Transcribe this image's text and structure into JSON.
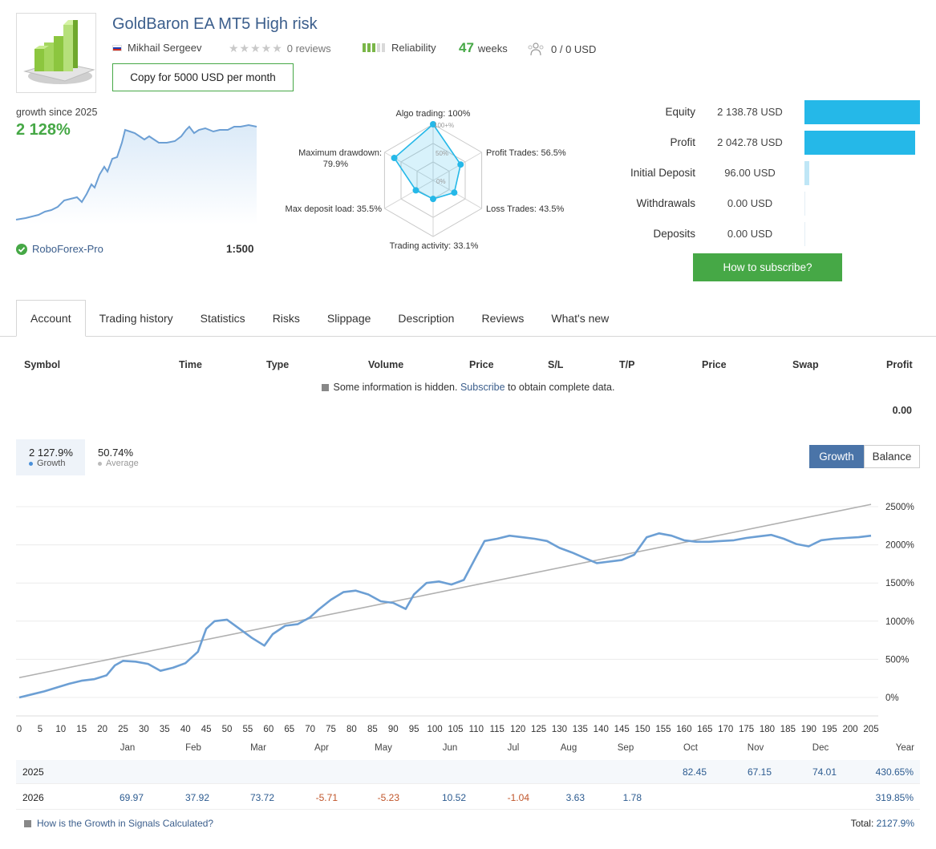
{
  "header": {
    "title": "GoldBaron EA MT5 High risk",
    "author": "Mikhail Sergeev",
    "reviews": "0 reviews",
    "reliability_label": "Reliability",
    "reliability_level": 0.6,
    "weeks_num": "47",
    "weeks_label": "weeks",
    "subscribers": "0 / 0 USD",
    "copy_button": "Copy for 5000 USD per month"
  },
  "growth_summary": {
    "label": "growth since 2025",
    "value": "2 128%",
    "broker": "RoboForex-Pro",
    "leverage": "1:500"
  },
  "radar": {
    "algo": "Algo trading: 100%",
    "profit_trades": "Profit Trades: 56.5%",
    "loss_trades": "Loss Trades: 43.5%",
    "activity": "Trading activity: 33.1%",
    "deposit_load": "Max deposit load: 35.5%",
    "drawdown_1": "Maximum drawdown:",
    "drawdown_2": "79.9%",
    "ring_100": "100+%",
    "ring_50": "50%",
    "ring_0": "0%",
    "values": [
      1.0,
      0.565,
      0.435,
      0.331,
      0.355,
      0.799
    ]
  },
  "stats": [
    {
      "label": "Equity",
      "value": "2 138.78 USD",
      "level": 1.0
    },
    {
      "label": "Profit",
      "value": "2 042.78 USD",
      "level": 0.955
    },
    {
      "label": "Initial Deposit",
      "value": "96.00 USD",
      "level": 0.045
    },
    {
      "label": "Withdrawals",
      "value": "0.00 USD",
      "level": 0.0
    },
    {
      "label": "Deposits",
      "value": "0.00 USD",
      "level": 0.0
    }
  ],
  "subscribe_button": "How to subscribe?",
  "tabs": [
    "Account",
    "Trading history",
    "Statistics",
    "Risks",
    "Slippage",
    "Description",
    "Reviews",
    "What's new"
  ],
  "table": {
    "headers": [
      "Symbol",
      "Time",
      "Type",
      "Volume",
      "Price",
      "S/L",
      "T/P",
      "Price",
      "Swap",
      "Profit"
    ],
    "note_before": "Some information is hidden.",
    "note_link": "Subscribe",
    "note_after": "to obtain complete data.",
    "total_profit": "0.00"
  },
  "chart_summary": {
    "growth_value": "2 127.9%",
    "growth_label": "Growth",
    "average_value": "50.74%",
    "average_label": "Average",
    "btn_growth": "Growth",
    "btn_balance": "Balance"
  },
  "chart_data": {
    "type": "line",
    "x_ticks": [
      0,
      5,
      10,
      15,
      20,
      25,
      30,
      35,
      40,
      45,
      50,
      55,
      60,
      65,
      70,
      75,
      80,
      85,
      90,
      95,
      100,
      105,
      110,
      115,
      120,
      125,
      130,
      135,
      140,
      145,
      150,
      155,
      160,
      165,
      170,
      175,
      180,
      185,
      190,
      195,
      200,
      205
    ],
    "y_ticks": [
      "0%",
      "500%",
      "1000%",
      "1500%",
      "2000%",
      "2500%"
    ],
    "xlim": [
      0,
      205
    ],
    "ylim": [
      -50,
      2650
    ],
    "series": [
      {
        "values": [
          [
            0,
            0
          ],
          [
            3,
            40
          ],
          [
            6,
            80
          ],
          [
            9,
            130
          ],
          [
            12,
            180
          ],
          [
            15,
            220
          ],
          [
            18,
            240
          ],
          [
            21,
            290
          ],
          [
            23,
            420
          ],
          [
            25,
            480
          ],
          [
            28,
            470
          ],
          [
            31,
            440
          ],
          [
            34,
            350
          ],
          [
            37,
            390
          ],
          [
            40,
            450
          ],
          [
            43,
            600
          ],
          [
            45,
            900
          ],
          [
            47,
            1000
          ],
          [
            50,
            1020
          ],
          [
            53,
            900
          ],
          [
            56,
            780
          ],
          [
            59,
            680
          ],
          [
            61,
            830
          ],
          [
            64,
            940
          ],
          [
            67,
            960
          ],
          [
            70,
            1050
          ],
          [
            72,
            1150
          ],
          [
            75,
            1280
          ],
          [
            78,
            1380
          ],
          [
            81,
            1400
          ],
          [
            84,
            1350
          ],
          [
            87,
            1260
          ],
          [
            90,
            1240
          ],
          [
            93,
            1160
          ],
          [
            95,
            1350
          ],
          [
            98,
            1500
          ],
          [
            101,
            1520
          ],
          [
            104,
            1480
          ],
          [
            107,
            1540
          ],
          [
            110,
            1850
          ],
          [
            112,
            2050
          ],
          [
            115,
            2080
          ],
          [
            118,
            2120
          ],
          [
            121,
            2100
          ],
          [
            124,
            2080
          ],
          [
            127,
            2050
          ],
          [
            130,
            1960
          ],
          [
            133,
            1900
          ],
          [
            136,
            1830
          ],
          [
            139,
            1760
          ],
          [
            142,
            1780
          ],
          [
            145,
            1800
          ],
          [
            148,
            1870
          ],
          [
            151,
            2100
          ],
          [
            154,
            2150
          ],
          [
            157,
            2120
          ],
          [
            160,
            2060
          ],
          [
            163,
            2040
          ],
          [
            166,
            2040
          ],
          [
            169,
            2050
          ],
          [
            172,
            2060
          ],
          [
            175,
            2090
          ],
          [
            178,
            2110
          ],
          [
            181,
            2130
          ],
          [
            184,
            2080
          ],
          [
            187,
            2010
          ],
          [
            190,
            1980
          ],
          [
            193,
            2060
          ],
          [
            196,
            2080
          ],
          [
            199,
            2090
          ],
          [
            202,
            2100
          ],
          [
            205,
            2120
          ]
        ]
      },
      {
        "values": [
          [
            0,
            260
          ],
          [
            205,
            2530
          ]
        ]
      }
    ]
  },
  "year_table": {
    "months": [
      "Jan",
      "Feb",
      "Mar",
      "Apr",
      "May",
      "Jun",
      "Jul",
      "Aug",
      "Sep",
      "Oct",
      "Nov",
      "Dec"
    ],
    "year_label": "Year",
    "rows": [
      {
        "year": "2025",
        "values": [
          "",
          "",
          "",
          "",
          "",
          "",
          "",
          "",
          "",
          "82.45",
          "67.15",
          "74.01"
        ],
        "total": "430.65%"
      },
      {
        "year": "2026",
        "values": [
          "69.97",
          "37.92",
          "73.72",
          "-5.71",
          "-5.23",
          "10.52",
          "-1.04",
          "3.63",
          "1.78",
          "",
          "",
          ""
        ],
        "total": "319.85%"
      }
    ]
  },
  "footer": {
    "link": "How is the Growth in Signals Calculated?",
    "total_label": "Total:",
    "total_value": "2127.9%"
  },
  "colors": {
    "accent_blue": "#3b5e8c",
    "green": "#46a846",
    "bar_blue": "#25b8e8",
    "line_blue": "#6c9fd4"
  }
}
